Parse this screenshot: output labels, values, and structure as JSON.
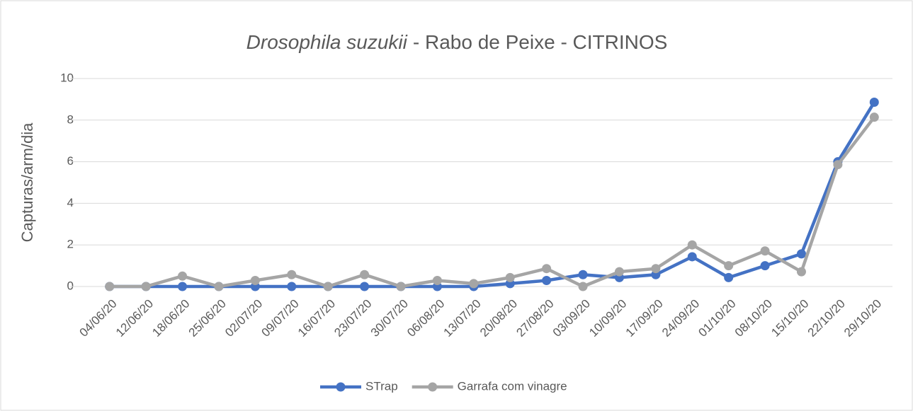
{
  "chart_data": {
    "type": "line",
    "title": [
      "Drosophila suzukii",
      "- Rabo de Peixe - CITRINOS"
    ],
    "ylabel": "Capturas/arm/dia",
    "categories": [
      "04/06/20",
      "12/06/20",
      "18/06/20",
      "25/06/20",
      "02/07/20",
      "09/07/20",
      "16/07/20",
      "23/07/20",
      "30/07/20",
      "06/08/20",
      "13/07/20",
      "20/08/20",
      "27/08/20",
      "03/09/20",
      "10/09/20",
      "17/09/20",
      "24/09/20",
      "01/10/20",
      "08/10/20",
      "15/10/20",
      "22/10/20",
      "29/10/20"
    ],
    "series": [
      {
        "name": "STrap",
        "color": "#4472c4",
        "values": [
          0,
          0,
          0,
          0,
          0,
          0,
          0,
          0,
          0,
          0,
          0,
          0.14,
          0.29,
          0.57,
          0.43,
          0.57,
          1.43,
          0.43,
          1.0,
          1.57,
          6.0,
          8.86
        ]
      },
      {
        "name": "Garrafa com vinagre",
        "color": "#a5a5a5",
        "values": [
          0,
          0,
          0.5,
          0,
          0.29,
          0.57,
          0,
          0.57,
          0,
          0.29,
          0.14,
          0.43,
          0.86,
          0,
          0.71,
          0.86,
          2.0,
          1.0,
          1.71,
          0.71,
          5.86,
          8.14
        ]
      }
    ],
    "ylim": [
      0,
      10
    ],
    "yticks": [
      0,
      2,
      4,
      6,
      8,
      10
    ],
    "grid": true,
    "legend": "bottom"
  }
}
